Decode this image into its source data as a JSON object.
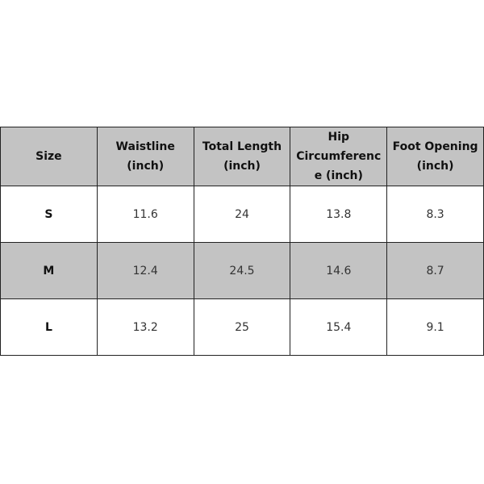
{
  "table": {
    "headers": [
      "Size",
      "Waistline (inch)",
      "Total Length (inch)",
      "Hip Circumference (inch)",
      "Foot Opening (inch)"
    ],
    "rows": [
      [
        "S",
        "11.6",
        "24",
        "13.8",
        "8.3"
      ],
      [
        "M",
        "12.4",
        "24.5",
        "14.6",
        "8.7"
      ],
      [
        "L",
        "13.2",
        "25",
        "15.4",
        "9.1"
      ]
    ],
    "colors": {
      "header_bg": "#c3c3c3",
      "border": "#222222"
    }
  }
}
